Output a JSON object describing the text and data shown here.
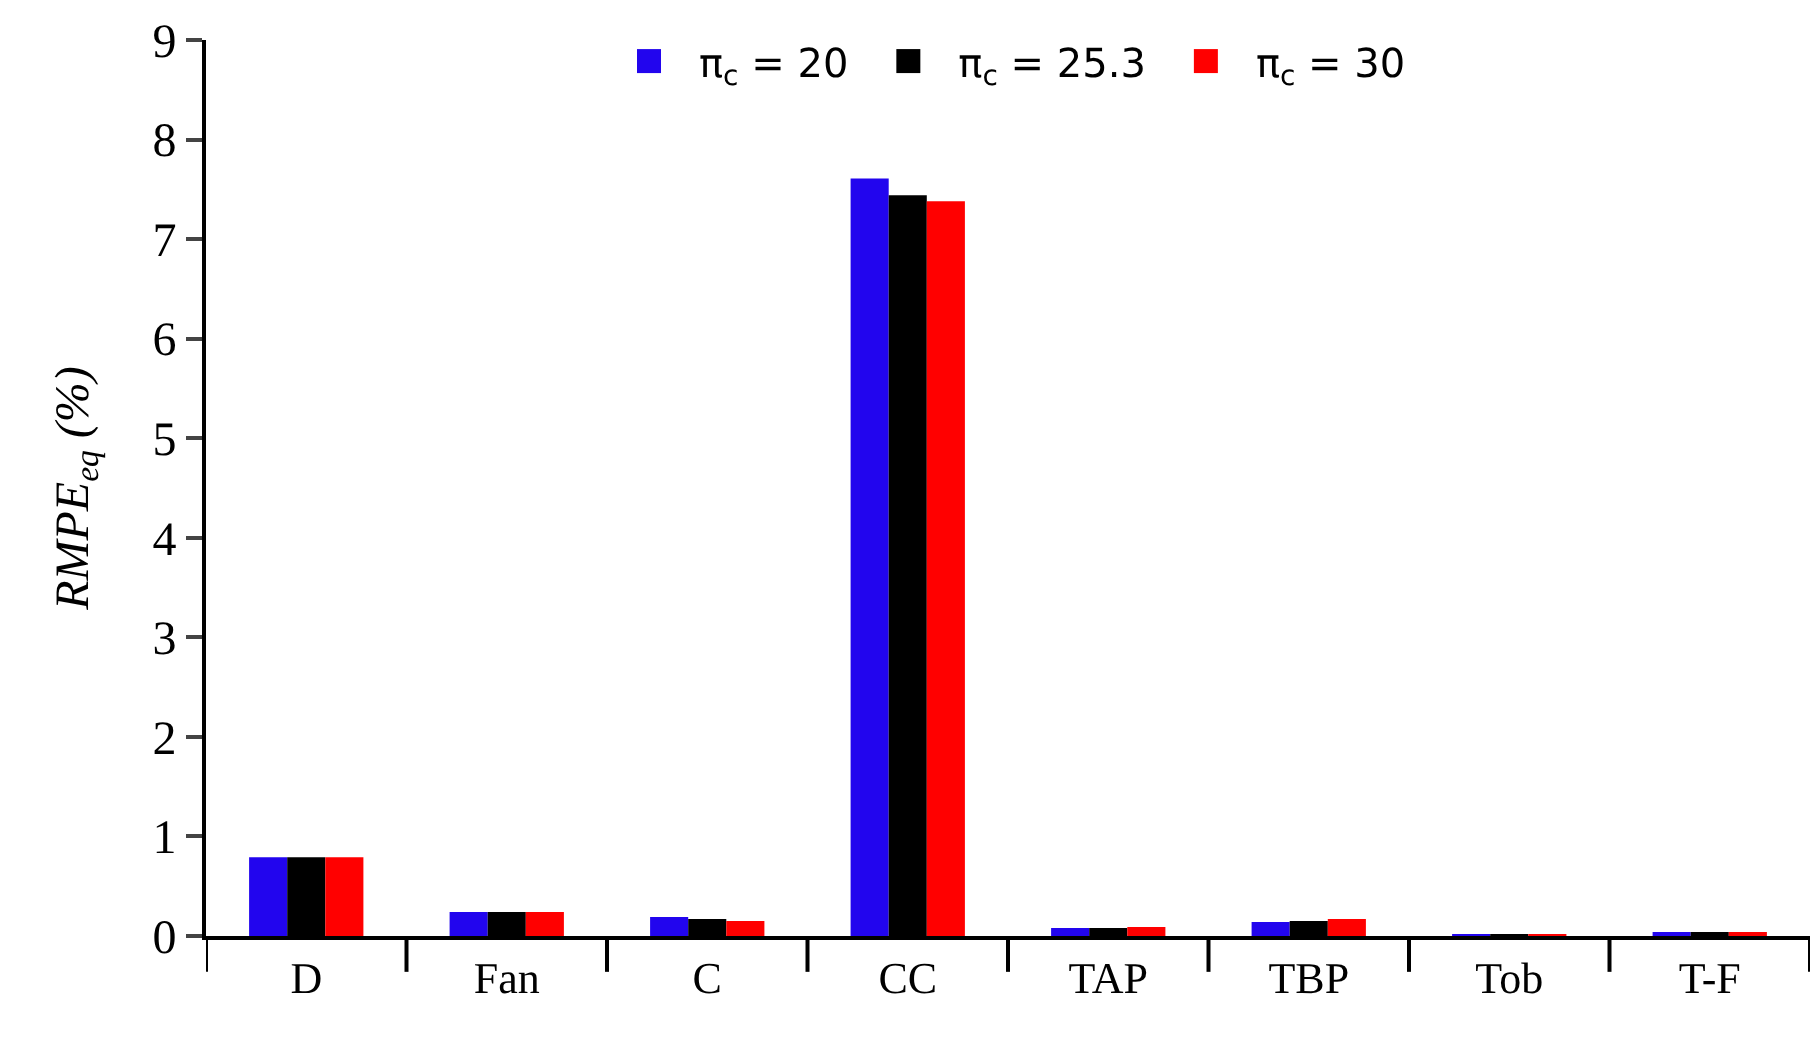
{
  "chart_data": {
    "type": "bar",
    "ylabel": "RMPE$_{eq}$ (%)",
    "categories": [
      "D",
      "Fan",
      "C",
      "CC",
      "TAP",
      "TBP",
      "Tob",
      "T-F"
    ],
    "series": [
      {
        "name": "π$_{c}$ = 20",
        "color": "#2205ee",
        "values": [
          0.79,
          0.24,
          0.19,
          7.61,
          0.08,
          0.14,
          0.01,
          0.04
        ]
      },
      {
        "name": "π$_{c}$ = 25.3",
        "color": "#000000",
        "values": [
          0.79,
          0.24,
          0.17,
          7.44,
          0.08,
          0.15,
          0.01,
          0.04
        ]
      },
      {
        "name": "π$_{c}$ = 30",
        "color": "#ff0000",
        "values": [
          0.79,
          0.24,
          0.15,
          7.38,
          0.09,
          0.17,
          0.02,
          0.04
        ]
      }
    ],
    "ylim": [
      0,
      9
    ],
    "yticks": [
      0,
      1,
      2,
      3,
      4,
      5,
      6,
      7,
      8,
      9
    ],
    "grid": false,
    "legend": "top"
  }
}
